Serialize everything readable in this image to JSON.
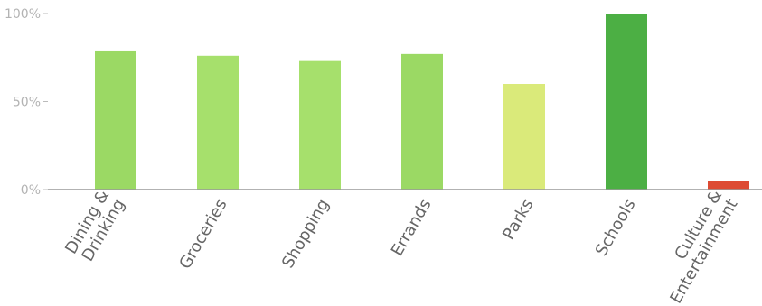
{
  "chart_data": {
    "type": "bar",
    "categories": [
      [
        "Dining &",
        "Drinking"
      ],
      [
        "Groceries"
      ],
      [
        "Shopping"
      ],
      [
        "Errands"
      ],
      [
        "Parks"
      ],
      [
        "Schools"
      ],
      [
        "Culture &",
        "Entertainment"
      ]
    ],
    "values": [
      79,
      76,
      73,
      77,
      60,
      100,
      5
    ],
    "colors": [
      "#9bd964",
      "#a6e06c",
      "#a6e06c",
      "#9bd964",
      "#daea7a",
      "#4caf44",
      "#dd4b33"
    ],
    "ylim": [
      0,
      100
    ],
    "yticks": [
      {
        "value": 0,
        "label": "0%"
      },
      {
        "value": 50,
        "label": "50%"
      },
      {
        "value": 100,
        "label": "100%"
      }
    ],
    "xlabel": "",
    "ylabel": "",
    "title": ""
  }
}
